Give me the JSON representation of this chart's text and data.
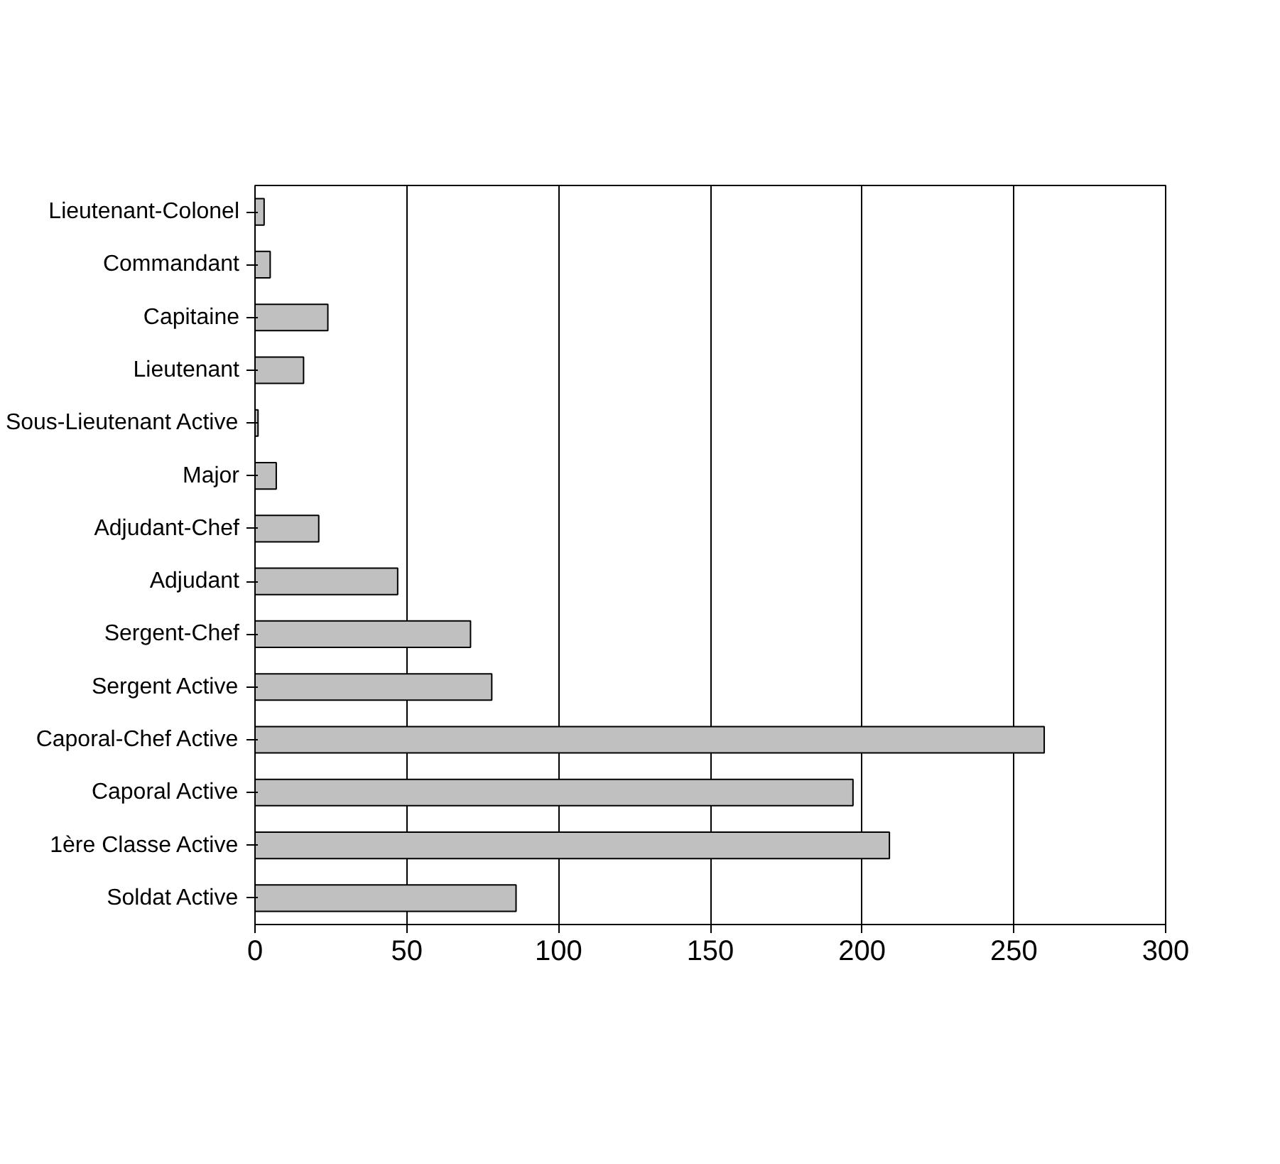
{
  "chart_data": {
    "type": "bar",
    "orientation": "horizontal",
    "categories": [
      "Lieutenant-Colonel",
      "Commandant",
      "Capitaine",
      "Lieutenant",
      "Sous-Lieutenant Active",
      "Major",
      "Adjudant-Chef",
      "Adjudant",
      "Sergent-Chef",
      "Sergent Active",
      "Caporal-Chef Active",
      "Caporal Active",
      "1ère Classe Active",
      "Soldat Active"
    ],
    "values": [
      3,
      5,
      24,
      16,
      1,
      7,
      21,
      47,
      71,
      78,
      260,
      197,
      209,
      86
    ],
    "color": "#c0c0c0",
    "xlim": [
      0,
      300
    ],
    "xticks": [
      0,
      50,
      100,
      150,
      200,
      250,
      300
    ],
    "grid": "x"
  }
}
